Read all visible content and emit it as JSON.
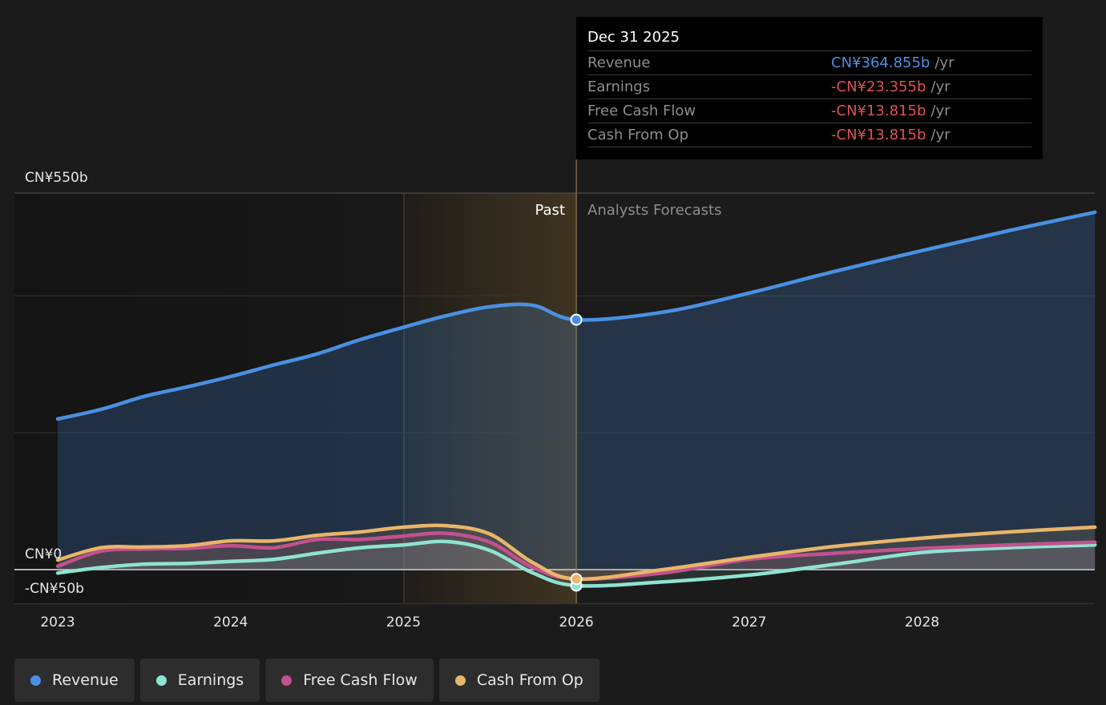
{
  "chart_data": {
    "type": "line",
    "x_ticks": [
      "2023",
      "2024",
      "2025",
      "2026",
      "2027",
      "2028"
    ],
    "y_labels": {
      "top": "CN¥550b",
      "zero": "CN¥0",
      "bottom": "-CN¥50b"
    },
    "ylim": [
      -50,
      550
    ],
    "region_labels": {
      "past": "Past",
      "forecast": "Analysts Forecasts"
    },
    "series": [
      {
        "name": "Revenue",
        "color": "#4a90e2",
        "x": [
          2023.0,
          2023.25,
          2023.5,
          2023.75,
          2024.0,
          2024.25,
          2024.5,
          2024.75,
          2025.0,
          2025.25,
          2025.5,
          2025.75,
          2026.0,
          2026.5,
          2027.0,
          2027.5,
          2028.0,
          2028.5,
          2029.0
        ],
        "values": [
          220,
          234,
          253,
          267,
          282,
          299,
          315,
          336,
          354,
          371,
          384,
          386,
          365,
          376,
          404,
          436,
          466,
          495,
          522
        ]
      },
      {
        "name": "Earnings",
        "color": "#8ee3d0",
        "x": [
          2023.0,
          2023.25,
          2023.5,
          2023.75,
          2024.0,
          2024.25,
          2024.5,
          2024.75,
          2025.0,
          2025.25,
          2025.5,
          2025.75,
          2026.0,
          2026.5,
          2027.0,
          2027.5,
          2028.0,
          2028.5,
          2029.0
        ],
        "values": [
          -5,
          3,
          8,
          9,
          12,
          15,
          24,
          32,
          36,
          41,
          28,
          -5,
          -23.355,
          -18,
          -8,
          8,
          25,
          32,
          36
        ]
      },
      {
        "name": "Free Cash Flow",
        "color": "#c2518f",
        "x": [
          2023.0,
          2023.25,
          2023.5,
          2023.75,
          2024.0,
          2024.25,
          2024.5,
          2024.75,
          2025.0,
          2025.25,
          2025.5,
          2025.75,
          2026.0,
          2026.5,
          2027.0,
          2027.5,
          2028.0,
          2028.5,
          2029.0
        ],
        "values": [
          5,
          27,
          30,
          31,
          35,
          32,
          44,
          44,
          49,
          53,
          40,
          3,
          -13.815,
          -5,
          15,
          24,
          31,
          36,
          40
        ]
      },
      {
        "name": "Cash From Op",
        "color": "#e8b56a",
        "x": [
          2023.0,
          2023.25,
          2023.5,
          2023.75,
          2024.0,
          2024.25,
          2024.5,
          2024.75,
          2025.0,
          2025.25,
          2025.5,
          2025.75,
          2026.0,
          2026.5,
          2027.0,
          2027.5,
          2028.0,
          2028.5,
          2029.0
        ],
        "values": [
          14,
          32,
          33,
          35,
          42,
          42,
          50,
          55,
          62,
          64,
          52,
          10,
          -13.815,
          0,
          18,
          34,
          46,
          55,
          62
        ]
      }
    ],
    "marker_x": 2026.0,
    "past_shade_start": 2025.0,
    "grid": true,
    "legend_position": "bottom-left"
  },
  "tooltip": {
    "date": "Dec 31 2025",
    "rows": [
      {
        "name": "Revenue",
        "value": "CN¥364.855b",
        "unit": "/yr"
      },
      {
        "name": "Earnings",
        "value": "-CN¥23.355b",
        "unit": "/yr"
      },
      {
        "name": "Free Cash Flow",
        "value": "-CN¥13.815b",
        "unit": "/yr"
      },
      {
        "name": "Cash From Op",
        "value": "-CN¥13.815b",
        "unit": "/yr"
      }
    ]
  },
  "legend": [
    {
      "label": "Revenue",
      "color": "#4a90e2"
    },
    {
      "label": "Earnings",
      "color": "#8ee3d0"
    },
    {
      "label": "Free Cash Flow",
      "color": "#c2518f"
    },
    {
      "label": "Cash From Op",
      "color": "#e8b56a"
    }
  ]
}
